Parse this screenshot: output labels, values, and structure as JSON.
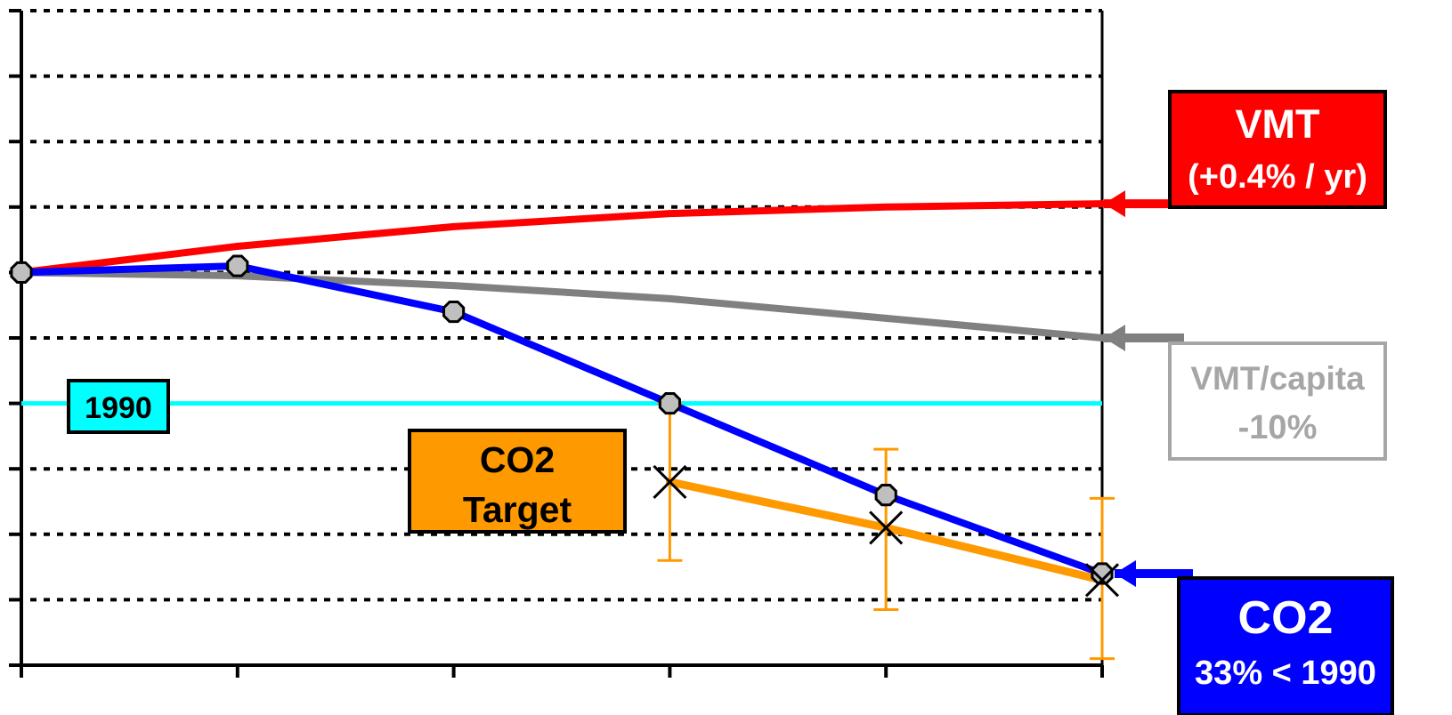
{
  "chart_data": {
    "type": "line",
    "x": [
      0,
      1,
      2,
      3,
      4,
      5
    ],
    "ylim": [
      0,
      10
    ],
    "yticks": [
      0,
      1,
      2,
      3,
      4,
      5,
      6,
      7,
      8,
      9,
      10
    ],
    "grid": true,
    "series": [
      {
        "name": "VMT",
        "color": "#ff0000",
        "values": [
          6.0,
          6.4,
          6.7,
          6.9,
          7.0,
          7.05
        ]
      },
      {
        "name": "VMT/capita",
        "color": "#808080",
        "values": [
          6.0,
          5.95,
          5.8,
          5.6,
          5.3,
          5.0
        ]
      },
      {
        "name": "CO2",
        "color": "#0000ff",
        "values": [
          6.0,
          6.1,
          5.4,
          4.0,
          2.6,
          1.4
        ]
      },
      {
        "name": "CO2 Target",
        "color": "#ff9900",
        "x": [
          3,
          4,
          5
        ],
        "values": [
          2.8,
          2.1,
          1.3
        ],
        "error_low": [
          1.6,
          0.85,
          0.1
        ],
        "error_high": [
          4.0,
          3.3,
          2.55
        ]
      }
    ],
    "reference_line": {
      "label": "1990",
      "value": 4.0,
      "color": "#00ffff"
    },
    "annotations": {
      "vmt": {
        "line1": "VMT",
        "line2": "(+0.4% / yr)",
        "fill": "#ff0000",
        "text_color": "#ffffff"
      },
      "vmt_capita": {
        "line1": "VMT/capita",
        "line2": "-10%",
        "fill": "#ffffff",
        "text_color": "#a6a6a6"
      },
      "co2": {
        "line1": "CO2",
        "line2": "33% < 1990",
        "fill": "#0000ff",
        "text_color": "#ffffff"
      },
      "co2_target": {
        "line1": "CO2",
        "line2": "Target",
        "fill": "#ff9900",
        "text_color": "#000000"
      },
      "ref_1990": {
        "label": "1990",
        "fill": "#00ffff",
        "text_color": "#000000"
      }
    }
  }
}
